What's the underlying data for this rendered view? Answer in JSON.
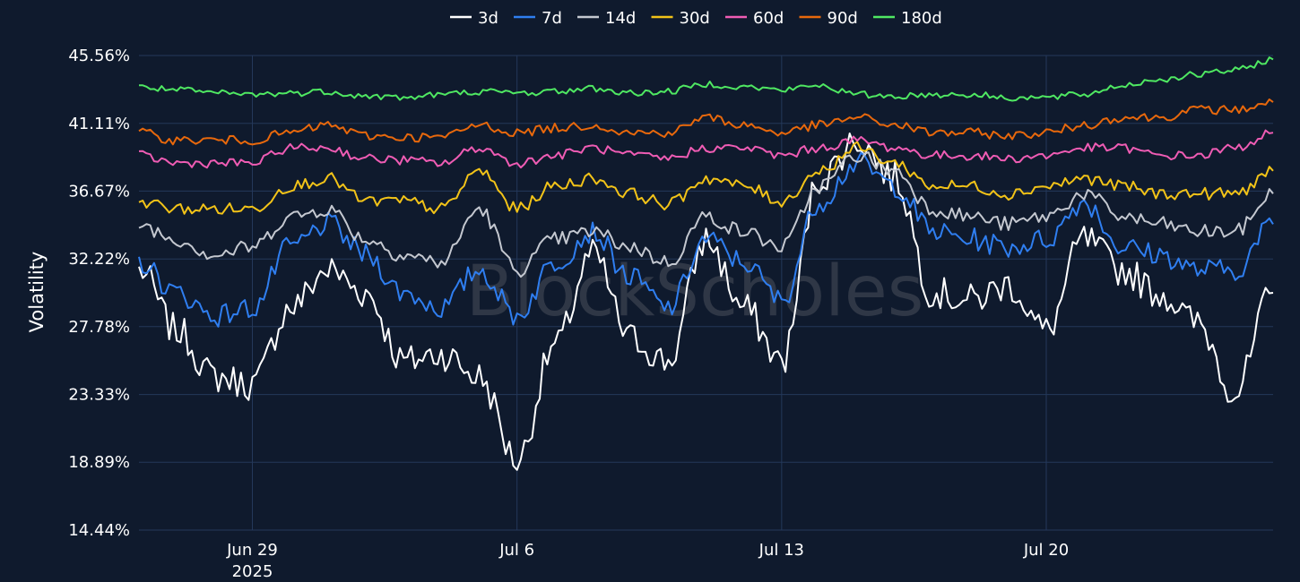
{
  "chart_data": {
    "type": "line",
    "watermark": "BlockScholes",
    "ylabel": "Volatility",
    "xlabel": "",
    "y_ticks": [
      "45.56%",
      "41.11%",
      "36.67%",
      "32.22%",
      "27.78%",
      "23.33%",
      "18.89%",
      "14.44%"
    ],
    "ylim": [
      14.44,
      45.56
    ],
    "x_range": [
      "2025-06-26",
      "2025-07-26"
    ],
    "x_ticks": [
      {
        "date": "2025-06-29",
        "label": "Jun 29",
        "sublabel": "2025"
      },
      {
        "date": "2025-07-06",
        "label": "Jul 6",
        "sublabel": ""
      },
      {
        "date": "2025-07-13",
        "label": "Jul 13",
        "sublabel": ""
      },
      {
        "date": "2025-07-20",
        "label": "Jul 20",
        "sublabel": ""
      }
    ],
    "legend_position": "top-center",
    "grid": true,
    "series": [
      {
        "name": "3d",
        "color": "#ffffff",
        "x": [
          "2025-06-26",
          "2025-06-27",
          "2025-06-28",
          "2025-06-29",
          "2025-06-30",
          "2025-07-01",
          "2025-07-02",
          "2025-07-03",
          "2025-07-04",
          "2025-07-05",
          "2025-07-06",
          "2025-07-07",
          "2025-07-08",
          "2025-07-09",
          "2025-07-10",
          "2025-07-11",
          "2025-07-12",
          "2025-07-13",
          "2025-07-14",
          "2025-07-15",
          "2025-07-16",
          "2025-07-17",
          "2025-07-18",
          "2025-07-19",
          "2025-07-20",
          "2025-07-21",
          "2025-07-22",
          "2025-07-23",
          "2025-07-24",
          "2025-07-25",
          "2025-07-26"
        ],
        "values": [
          31.5,
          27.5,
          24.5,
          24.0,
          29.0,
          31.5,
          30.0,
          25.5,
          26.0,
          24.5,
          19.0,
          26.5,
          32.5,
          27.0,
          25.5,
          33.5,
          29.0,
          25.5,
          37.5,
          40.0,
          37.5,
          30.0,
          29.5,
          30.5,
          27.5,
          33.5,
          31.5,
          30.0,
          28.0,
          23.5,
          30.0
        ]
      },
      {
        "name": "7d",
        "color": "#2f7ef0",
        "x": [
          "2025-06-26",
          "2025-06-27",
          "2025-06-28",
          "2025-06-29",
          "2025-06-30",
          "2025-07-01",
          "2025-07-02",
          "2025-07-03",
          "2025-07-04",
          "2025-07-05",
          "2025-07-06",
          "2025-07-07",
          "2025-07-08",
          "2025-07-09",
          "2025-07-10",
          "2025-07-11",
          "2025-07-12",
          "2025-07-13",
          "2025-07-14",
          "2025-07-15",
          "2025-07-16",
          "2025-07-17",
          "2025-07-18",
          "2025-07-19",
          "2025-07-20",
          "2025-07-21",
          "2025-07-22",
          "2025-07-23",
          "2025-07-24",
          "2025-07-25",
          "2025-07-26"
        ],
        "values": [
          32.0,
          30.0,
          28.5,
          29.0,
          33.0,
          34.5,
          32.5,
          30.0,
          29.0,
          31.5,
          28.5,
          32.0,
          34.0,
          31.0,
          29.0,
          33.5,
          32.0,
          29.5,
          36.0,
          38.5,
          37.0,
          34.0,
          33.5,
          33.0,
          33.5,
          36.0,
          33.0,
          32.5,
          31.5,
          31.5,
          34.5
        ]
      },
      {
        "name": "14d",
        "color": "#c4c8d0",
        "x": [
          "2025-06-26",
          "2025-06-27",
          "2025-06-28",
          "2025-06-29",
          "2025-06-30",
          "2025-07-01",
          "2025-07-02",
          "2025-07-03",
          "2025-07-04",
          "2025-07-05",
          "2025-07-06",
          "2025-07-07",
          "2025-07-08",
          "2025-07-09",
          "2025-07-10",
          "2025-07-11",
          "2025-07-12",
          "2025-07-13",
          "2025-07-14",
          "2025-07-15",
          "2025-07-16",
          "2025-07-17",
          "2025-07-18",
          "2025-07-19",
          "2025-07-20",
          "2025-07-21",
          "2025-07-22",
          "2025-07-23",
          "2025-07-24",
          "2025-07-25",
          "2025-07-26"
        ],
        "values": [
          34.5,
          33.5,
          32.5,
          33.0,
          35.0,
          35.5,
          33.5,
          32.5,
          32.0,
          35.5,
          31.5,
          33.5,
          34.0,
          33.0,
          32.0,
          35.0,
          34.0,
          33.0,
          37.0,
          39.0,
          38.0,
          35.5,
          35.0,
          34.5,
          35.0,
          36.5,
          35.0,
          34.5,
          34.0,
          34.0,
          36.5
        ]
      },
      {
        "name": "30d",
        "color": "#f2c318",
        "x": [
          "2025-06-26",
          "2025-06-27",
          "2025-06-28",
          "2025-06-29",
          "2025-06-30",
          "2025-07-01",
          "2025-07-02",
          "2025-07-03",
          "2025-07-04",
          "2025-07-05",
          "2025-07-06",
          "2025-07-07",
          "2025-07-08",
          "2025-07-09",
          "2025-07-10",
          "2025-07-11",
          "2025-07-12",
          "2025-07-13",
          "2025-07-14",
          "2025-07-15",
          "2025-07-16",
          "2025-07-17",
          "2025-07-18",
          "2025-07-19",
          "2025-07-20",
          "2025-07-21",
          "2025-07-22",
          "2025-07-23",
          "2025-07-24",
          "2025-07-25",
          "2025-07-26"
        ],
        "values": [
          36.0,
          35.5,
          35.5,
          35.5,
          37.0,
          37.5,
          36.0,
          36.0,
          35.5,
          38.0,
          35.5,
          37.0,
          37.5,
          36.5,
          35.8,
          37.5,
          37.0,
          36.0,
          38.0,
          39.5,
          38.5,
          37.0,
          37.0,
          36.5,
          37.0,
          37.5,
          37.0,
          36.5,
          36.5,
          36.5,
          38.0
        ]
      },
      {
        "name": "60d",
        "color": "#ef5cb4",
        "x": [
          "2025-06-26",
          "2025-06-27",
          "2025-06-28",
          "2025-06-29",
          "2025-06-30",
          "2025-07-01",
          "2025-07-02",
          "2025-07-03",
          "2025-07-04",
          "2025-07-05",
          "2025-07-06",
          "2025-07-07",
          "2025-07-08",
          "2025-07-09",
          "2025-07-10",
          "2025-07-11",
          "2025-07-12",
          "2025-07-13",
          "2025-07-14",
          "2025-07-15",
          "2025-07-16",
          "2025-07-17",
          "2025-07-18",
          "2025-07-19",
          "2025-07-20",
          "2025-07-21",
          "2025-07-22",
          "2025-07-23",
          "2025-07-24",
          "2025-07-25",
          "2025-07-26"
        ],
        "values": [
          39.0,
          38.5,
          38.5,
          38.5,
          39.5,
          39.5,
          38.8,
          38.7,
          38.5,
          39.5,
          38.5,
          39.0,
          39.5,
          39.0,
          38.8,
          39.5,
          39.5,
          39.0,
          39.5,
          40.0,
          39.5,
          39.0,
          39.0,
          38.8,
          39.0,
          39.5,
          39.5,
          39.0,
          39.0,
          39.5,
          40.5
        ]
      },
      {
        "name": "90d",
        "color": "#e8680c",
        "x": [
          "2025-06-26",
          "2025-06-27",
          "2025-06-28",
          "2025-06-29",
          "2025-06-30",
          "2025-07-01",
          "2025-07-02",
          "2025-07-03",
          "2025-07-04",
          "2025-07-05",
          "2025-07-06",
          "2025-07-07",
          "2025-07-08",
          "2025-07-09",
          "2025-07-10",
          "2025-07-11",
          "2025-07-12",
          "2025-07-13",
          "2025-07-14",
          "2025-07-15",
          "2025-07-16",
          "2025-07-17",
          "2025-07-18",
          "2025-07-19",
          "2025-07-20",
          "2025-07-21",
          "2025-07-22",
          "2025-07-23",
          "2025-07-24",
          "2025-07-25",
          "2025-07-26"
        ],
        "values": [
          40.5,
          40.0,
          40.0,
          40.0,
          40.5,
          41.0,
          40.3,
          40.2,
          40.2,
          41.0,
          40.5,
          40.8,
          41.0,
          40.5,
          40.5,
          41.5,
          41.0,
          40.5,
          41.0,
          41.5,
          41.0,
          40.5,
          40.5,
          40.3,
          40.5,
          41.0,
          41.5,
          41.5,
          42.0,
          42.0,
          42.5
        ]
      },
      {
        "name": "180d",
        "color": "#4fe862",
        "x": [
          "2025-06-26",
          "2025-06-27",
          "2025-06-28",
          "2025-06-29",
          "2025-06-30",
          "2025-07-01",
          "2025-07-02",
          "2025-07-03",
          "2025-07-04",
          "2025-07-05",
          "2025-07-06",
          "2025-07-07",
          "2025-07-08",
          "2025-07-09",
          "2025-07-10",
          "2025-07-11",
          "2025-07-12",
          "2025-07-13",
          "2025-07-14",
          "2025-07-15",
          "2025-07-16",
          "2025-07-17",
          "2025-07-18",
          "2025-07-19",
          "2025-07-20",
          "2025-07-21",
          "2025-07-22",
          "2025-07-23",
          "2025-07-24",
          "2025-07-25",
          "2025-07-26"
        ],
        "values": [
          43.5,
          43.3,
          43.1,
          43.0,
          43.1,
          43.2,
          42.9,
          42.8,
          43.0,
          43.2,
          43.1,
          43.2,
          43.4,
          43.1,
          43.2,
          43.7,
          43.5,
          43.3,
          43.6,
          43.0,
          42.9,
          43.0,
          43.0,
          42.8,
          42.8,
          43.0,
          43.6,
          44.0,
          44.3,
          44.6,
          45.3
        ]
      }
    ]
  }
}
